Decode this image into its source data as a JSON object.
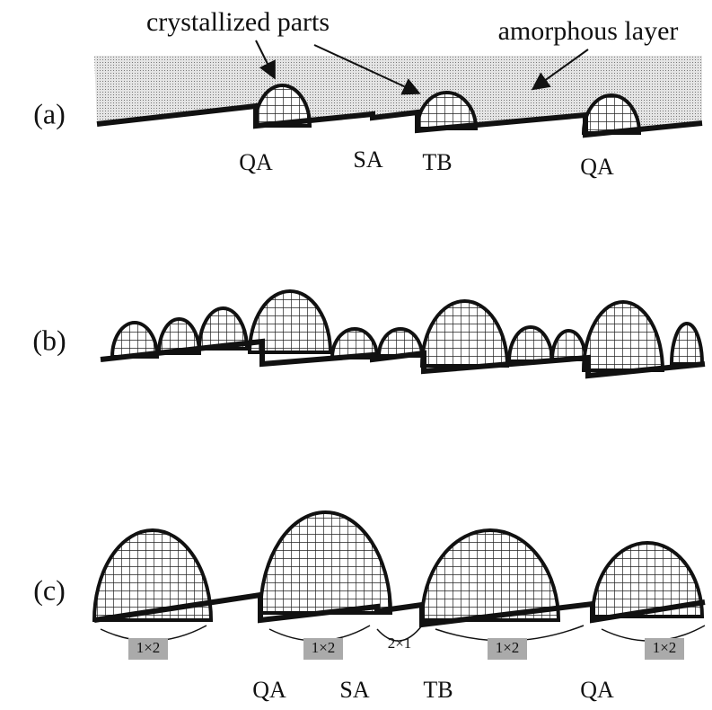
{
  "callouts": {
    "crystallized": "crystallized parts",
    "amorphous": "amorphous layer"
  },
  "panels": [
    {
      "label": "(a)",
      "sites": [
        "QA",
        "SA",
        "TB",
        "QA"
      ]
    },
    {
      "label": "(b)"
    },
    {
      "label": "(c)",
      "reconstructions": [
        "1×2",
        "1×2",
        "2×1",
        "1×2",
        "1×2"
      ],
      "sites": [
        "QA",
        "SA",
        "TB",
        "QA"
      ]
    }
  ]
}
